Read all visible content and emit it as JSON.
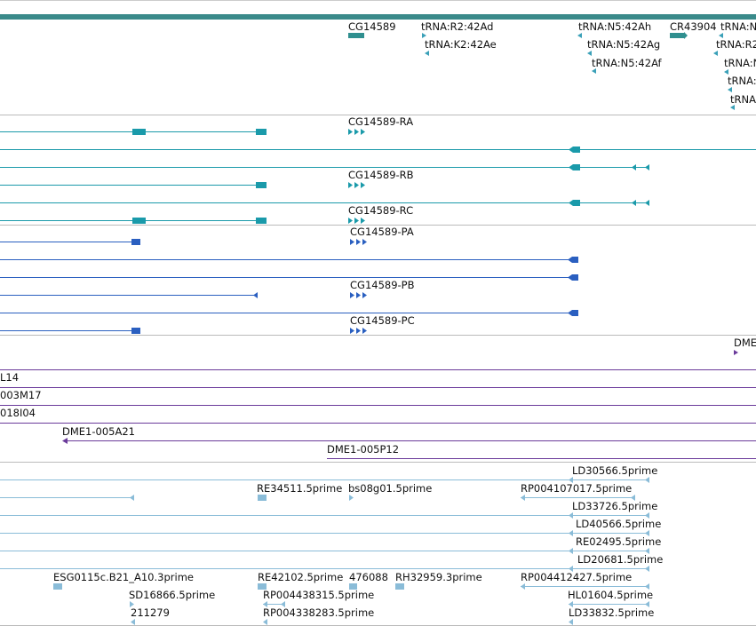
{
  "colors": {
    "top_bar": "#3a8a8a",
    "gene": "#2f8f8f",
    "trna": "#3aa0b8",
    "transcript": "#1a9aaa",
    "protein": "#2a5fc0",
    "clone": "#6a3a9a",
    "est": "#8abcd8",
    "separator": "#bbbbbb"
  },
  "genes": [
    {
      "label": "CG14589"
    },
    {
      "label": "tRNA:R2:42Ad"
    },
    {
      "label": "tRNA:K2:42Ae"
    },
    {
      "label": "tRNA:N5:42Ah"
    },
    {
      "label": "tRNA:N5:42Ag"
    },
    {
      "label": "tRNA:N5:42Af"
    },
    {
      "label": "CR43904"
    },
    {
      "label": "tRNA:N"
    },
    {
      "label": "tRNA:R2"
    },
    {
      "label": "tRNA:N"
    },
    {
      "label": "tRNA:"
    },
    {
      "label": "tRNA"
    }
  ],
  "transcripts": [
    {
      "label": "CG14589-RA"
    },
    {
      "label": "CG14589-RB"
    },
    {
      "label": "CG14589-RC"
    }
  ],
  "proteins": [
    {
      "label": "CG14589-PA"
    },
    {
      "label": "CG14589-PB"
    },
    {
      "label": "CG14589-PC"
    }
  ],
  "clones": [
    {
      "label": "DME"
    },
    {
      "label": "L14"
    },
    {
      "label": "003M17"
    },
    {
      "label": "018I04"
    },
    {
      "label": "DME1-005A21"
    },
    {
      "label": "DME1-005P12"
    }
  ],
  "ests": [
    {
      "label": "LD30566.5prime"
    },
    {
      "label": "RE34511.5prime"
    },
    {
      "label": "bs08g01.5prime"
    },
    {
      "label": "RP004107017.5prime"
    },
    {
      "label": "LD33726.5prime"
    },
    {
      "label": "LD40566.5prime"
    },
    {
      "label": "RE02495.5prime"
    },
    {
      "label": "LD20681.5prime"
    },
    {
      "label": "ESG0115c.B21_A10.3prime"
    },
    {
      "label": "RE42102.5prime"
    },
    {
      "label": "476088"
    },
    {
      "label": "RH32959.3prime"
    },
    {
      "label": "RP004412427.5prime"
    },
    {
      "label": "SD16866.5prime"
    },
    {
      "label": "RP004438315.5prime"
    },
    {
      "label": "HL01604.5prime"
    },
    {
      "label": "211279"
    },
    {
      "label": "RP004338283.5prime"
    },
    {
      "label": "LD33832.5prime"
    }
  ]
}
